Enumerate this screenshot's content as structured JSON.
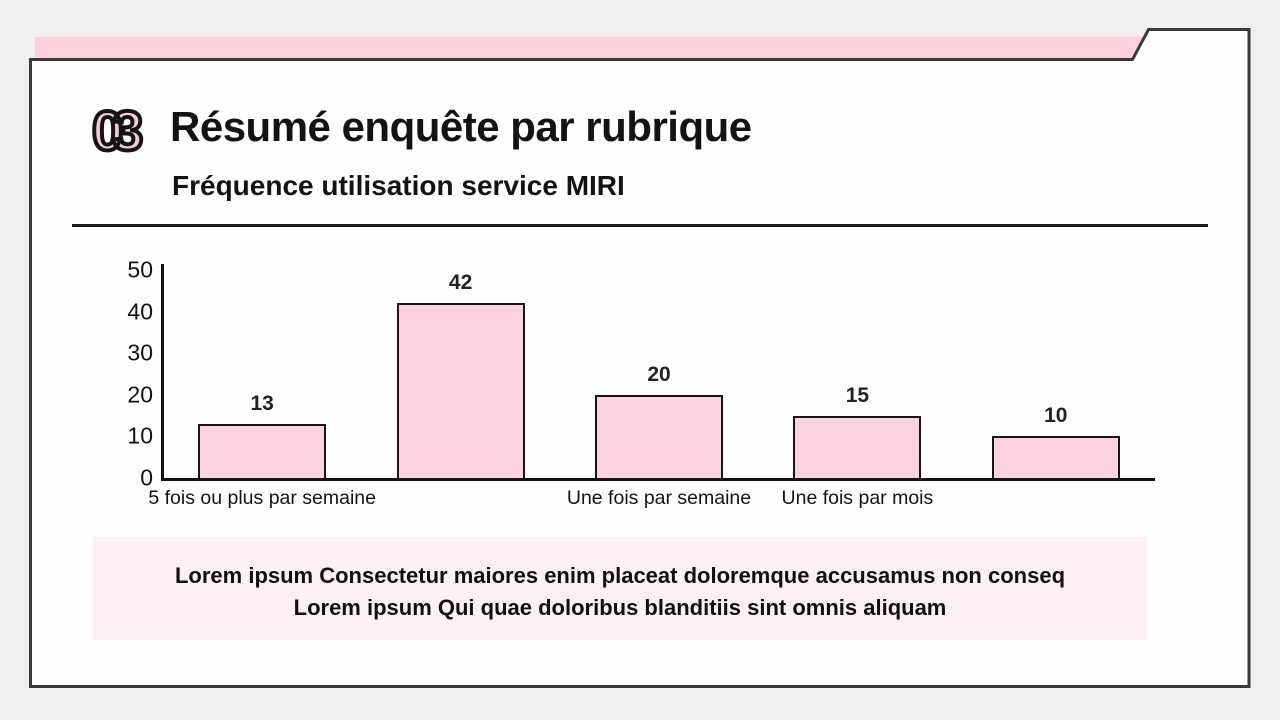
{
  "slide": {
    "number": "03",
    "title": "Résumé enquête par rubrique",
    "subtitle": "Fréquence utilisation service MIRI"
  },
  "chart_data": {
    "type": "bar",
    "title": "Fréquence utilisation service MIRI",
    "categories": [
      "5 fois ou plus par semaine",
      "",
      "Une fois par semaine",
      "Une fois par mois",
      ""
    ],
    "values": [
      13,
      42,
      20,
      15,
      10
    ],
    "y_ticks": [
      0,
      10,
      20,
      30,
      40,
      50
    ],
    "ylim": [
      0,
      50
    ],
    "xlabel": "",
    "ylabel": "",
    "grid": false,
    "legend": "none",
    "bar_color": "#fbd2dd",
    "bar_border_color": "#161616",
    "value_labels_shown": true
  },
  "footer": {
    "line1": "Lorem ipsum Consectetur maiores enim placeat doloremque accusamus non conseq",
    "line2": "Lorem ipsum Qui quae doloribus blanditiis sint omnis aliquam"
  },
  "colors": {
    "background": "#efefef",
    "card_fill": "#fefefe",
    "card_border": "#3a3a3a",
    "banner_pink": "#fdd0dc",
    "number_pink": "#f7c9d8",
    "footer_box_pink": "#fcf0f4",
    "text": "#131313"
  }
}
